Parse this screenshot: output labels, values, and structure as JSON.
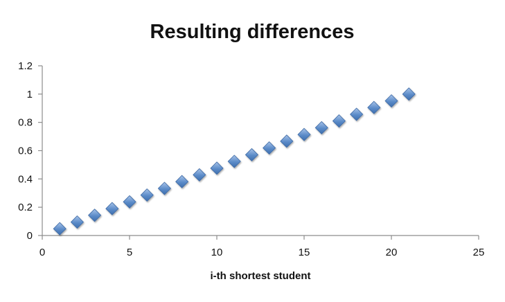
{
  "chart_data": {
    "type": "scatter",
    "title": "Resulting differences",
    "xlabel": "i-th shortest student",
    "ylabel": "",
    "xlim": [
      0,
      25
    ],
    "ylim": [
      0,
      1.2
    ],
    "x_ticks": [
      0,
      5,
      10,
      15,
      20,
      25
    ],
    "y_ticks": [
      0,
      0.2,
      0.4,
      0.6,
      0.8,
      1,
      1.2
    ],
    "x_tick_labels": [
      "0",
      "5",
      "10",
      "15",
      "20",
      "25"
    ],
    "y_tick_labels": [
      "0",
      "0.2",
      "0.4",
      "0.6",
      "0.8",
      "1",
      "1.2"
    ],
    "grid": false,
    "legend": "none",
    "marker": "diamond",
    "marker_color": "#5b8bc8",
    "series": [
      {
        "x": [
          1,
          2,
          3,
          4,
          5,
          6,
          7,
          8,
          9,
          10,
          11,
          12,
          13,
          14,
          15,
          16,
          17,
          18,
          19,
          20,
          21
        ],
        "y": [
          0.048,
          0.095,
          0.143,
          0.19,
          0.238,
          0.286,
          0.333,
          0.381,
          0.429,
          0.476,
          0.524,
          0.571,
          0.619,
          0.667,
          0.714,
          0.762,
          0.81,
          0.857,
          0.905,
          0.952,
          1.0
        ]
      }
    ]
  }
}
